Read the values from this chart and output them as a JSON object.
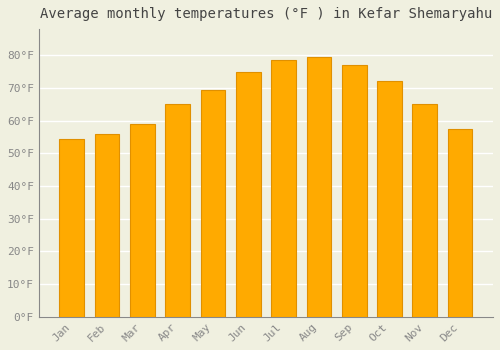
{
  "title": "Average monthly temperatures (°F ) in Kefar Shemaryahu",
  "months": [
    "Jan",
    "Feb",
    "Mar",
    "Apr",
    "May",
    "Jun",
    "Jul",
    "Aug",
    "Sep",
    "Oct",
    "Nov",
    "Dec"
  ],
  "values": [
    54.5,
    56.0,
    59.0,
    65.0,
    69.5,
    75.0,
    78.5,
    79.5,
    77.0,
    72.0,
    65.0,
    57.5
  ],
  "bar_color_main": "#FFAA00",
  "bar_color_edge": "#E09000",
  "background_color": "#F0F0E0",
  "grid_color": "#FFFFFF",
  "text_color": "#888888",
  "ylim": [
    0,
    88
  ],
  "yticks": [
    0,
    10,
    20,
    30,
    40,
    50,
    60,
    70,
    80
  ],
  "ytick_labels": [
    "0°F",
    "10°F",
    "20°F",
    "30°F",
    "40°F",
    "50°F",
    "60°F",
    "70°F",
    "80°F"
  ],
  "title_fontsize": 10,
  "tick_fontsize": 8
}
